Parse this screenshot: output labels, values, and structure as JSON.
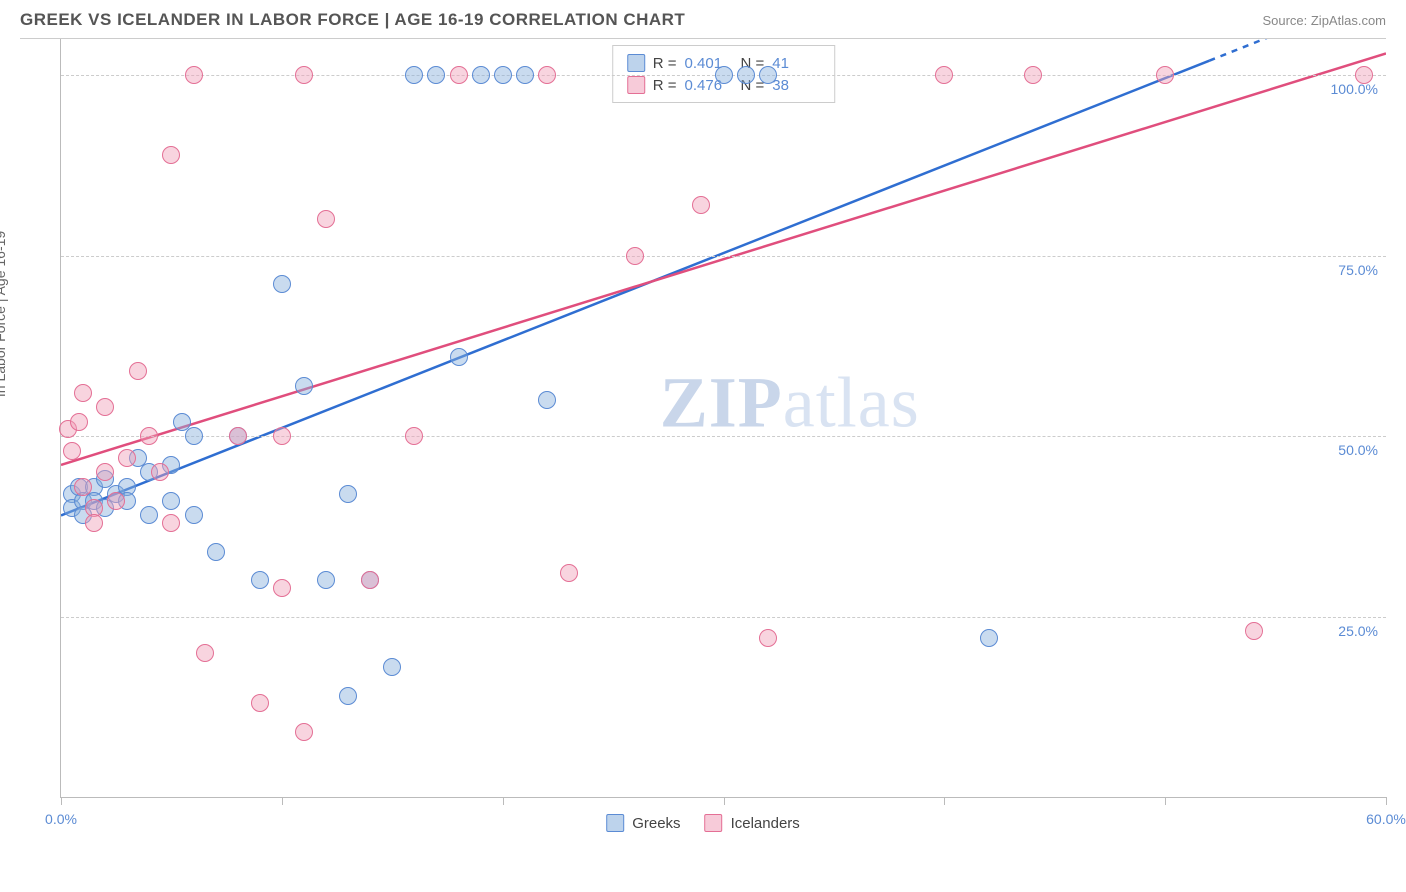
{
  "title": "GREEK VS ICELANDER IN LABOR FORCE | AGE 16-19 CORRELATION CHART",
  "source_label": "Source: ZipAtlas.com",
  "y_axis_label": "In Labor Force | Age 16-19",
  "watermark": {
    "pre": "ZIP",
    "post": "atlas"
  },
  "chart": {
    "type": "scatter",
    "xlim": [
      0,
      60
    ],
    "ylim": [
      0,
      105
    ],
    "x_ticks": [
      0,
      10,
      20,
      30,
      40,
      50,
      60
    ],
    "x_tick_labels": [
      "0.0%",
      "",
      "",
      "",
      "",
      "",
      "60.0%"
    ],
    "y_gridlines": [
      25,
      50,
      75,
      100
    ],
    "y_tick_labels": [
      "25.0%",
      "50.0%",
      "75.0%",
      "100.0%"
    ],
    "background_color": "#ffffff",
    "grid_color": "#cccccc",
    "axis_color": "#bbbbbb",
    "tick_label_color": "#5b8bd4",
    "marker_size": 18,
    "series": [
      {
        "name": "Greeks",
        "color_fill": "rgba(135,175,220,0.45)",
        "color_stroke": "#5b8bd4",
        "R": "0.401",
        "N": "41",
        "trend": {
          "x1": 0,
          "y1": 39,
          "x2": 52,
          "y2": 102,
          "stroke": "#2f6ed1",
          "width": 2.5,
          "dash_tail": true
        },
        "points": [
          [
            0.5,
            42
          ],
          [
            0.8,
            43
          ],
          [
            0.5,
            40
          ],
          [
            1,
            41
          ],
          [
            1.5,
            43
          ],
          [
            1.5,
            41
          ],
          [
            1,
            39
          ],
          [
            2,
            44
          ],
          [
            2.5,
            42
          ],
          [
            2,
            40
          ],
          [
            3,
            43
          ],
          [
            3,
            41
          ],
          [
            3.5,
            47
          ],
          [
            4,
            39
          ],
          [
            4,
            45
          ],
          [
            5,
            46
          ],
          [
            5,
            41
          ],
          [
            5.5,
            52
          ],
          [
            6,
            50
          ],
          [
            6,
            39
          ],
          [
            7,
            34
          ],
          [
            8,
            50
          ],
          [
            9,
            30
          ],
          [
            10,
            71
          ],
          [
            11,
            57
          ],
          [
            12,
            30
          ],
          [
            13,
            42
          ],
          [
            13,
            14
          ],
          [
            14,
            30
          ],
          [
            15,
            18
          ],
          [
            16,
            100
          ],
          [
            17,
            100
          ],
          [
            18,
            61
          ],
          [
            19,
            100
          ],
          [
            20,
            100
          ],
          [
            21,
            100
          ],
          [
            22,
            55
          ],
          [
            30,
            100
          ],
          [
            31,
            100
          ],
          [
            32,
            100
          ],
          [
            42,
            22
          ]
        ]
      },
      {
        "name": "Icelanders",
        "color_fill": "rgba(240,160,185,0.45)",
        "color_stroke": "#e46f95",
        "R": "0.476",
        "N": "38",
        "trend": {
          "x1": 0,
          "y1": 46,
          "x2": 60,
          "y2": 103,
          "stroke": "#e04e7d",
          "width": 2.5,
          "dash_tail": false
        },
        "points": [
          [
            0.3,
            51
          ],
          [
            0.5,
            48
          ],
          [
            0.8,
            52
          ],
          [
            1,
            56
          ],
          [
            1,
            43
          ],
          [
            1.5,
            40
          ],
          [
            1.5,
            38
          ],
          [
            2,
            54
          ],
          [
            2,
            45
          ],
          [
            2.5,
            41
          ],
          [
            3,
            47
          ],
          [
            3.5,
            59
          ],
          [
            4,
            50
          ],
          [
            4.5,
            45
          ],
          [
            5,
            89
          ],
          [
            5,
            38
          ],
          [
            6,
            100
          ],
          [
            6.5,
            20
          ],
          [
            8,
            50
          ],
          [
            9,
            13
          ],
          [
            10,
            50
          ],
          [
            10,
            29
          ],
          [
            11,
            100
          ],
          [
            11,
            9
          ],
          [
            12,
            80
          ],
          [
            14,
            30
          ],
          [
            16,
            50
          ],
          [
            18,
            100
          ],
          [
            22,
            100
          ],
          [
            23,
            31
          ],
          [
            26,
            75
          ],
          [
            29,
            82
          ],
          [
            32,
            22
          ],
          [
            40,
            100
          ],
          [
            44,
            100
          ],
          [
            50,
            100
          ],
          [
            54,
            23
          ],
          [
            59,
            100
          ]
        ]
      }
    ]
  },
  "legend_top": {
    "r_label": "R =",
    "n_label": "N ="
  },
  "legend_bottom": {
    "items": [
      "Greeks",
      "Icelanders"
    ]
  }
}
